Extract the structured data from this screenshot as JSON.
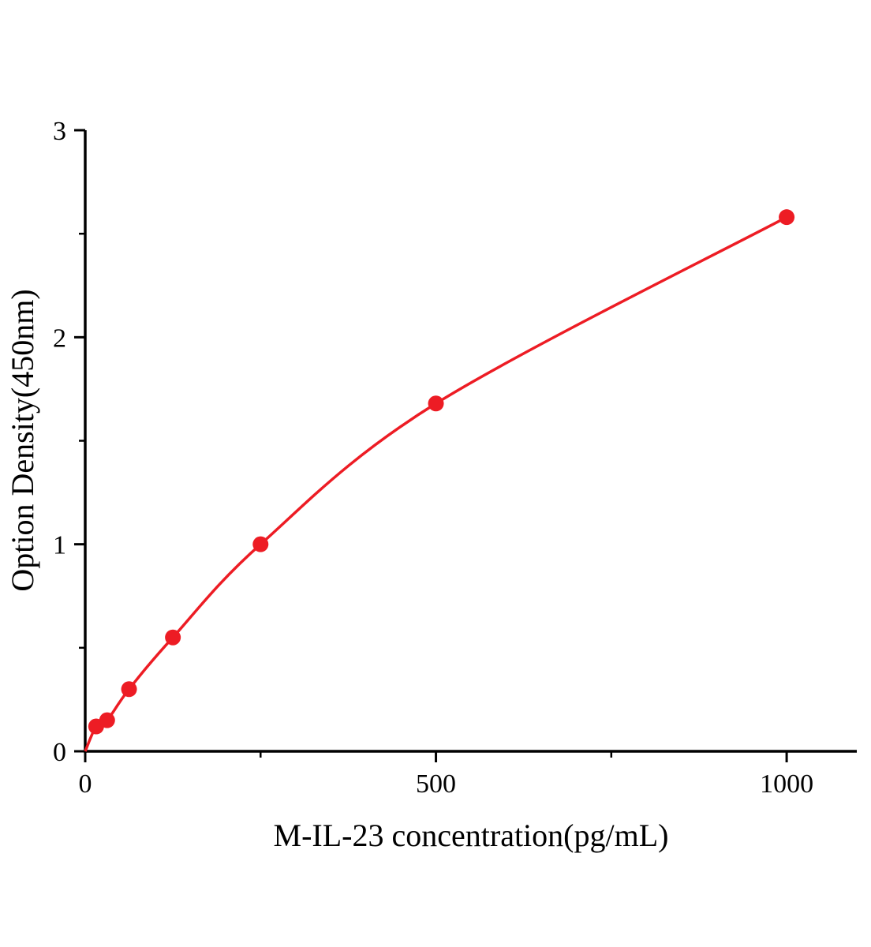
{
  "chart_data": {
    "type": "line",
    "title": "",
    "xlabel": "M-IL-23 concentration(pg/mL)",
    "ylabel": "Option Density(450nm)",
    "x": [
      15.6,
      31.25,
      62.5,
      125,
      250,
      500,
      1000
    ],
    "y": [
      0.12,
      0.15,
      0.3,
      0.55,
      1.0,
      1.68,
      2.58
    ],
    "curve_origin": {
      "x": 0,
      "y": 0
    },
    "xlim": [
      0,
      1100
    ],
    "ylim": [
      0,
      3
    ],
    "x_major_ticks": [
      0,
      500,
      1000
    ],
    "x_minor_ticks": [
      250,
      750
    ],
    "y_major_ticks": [
      0,
      1,
      2,
      3
    ],
    "y_minor_ticks": [
      0.5,
      1.5,
      2.5
    ],
    "line_color": "#ed1c24",
    "marker_color": "#ed1c24",
    "axis_color": "#000000",
    "grid": false,
    "legend": null
  }
}
